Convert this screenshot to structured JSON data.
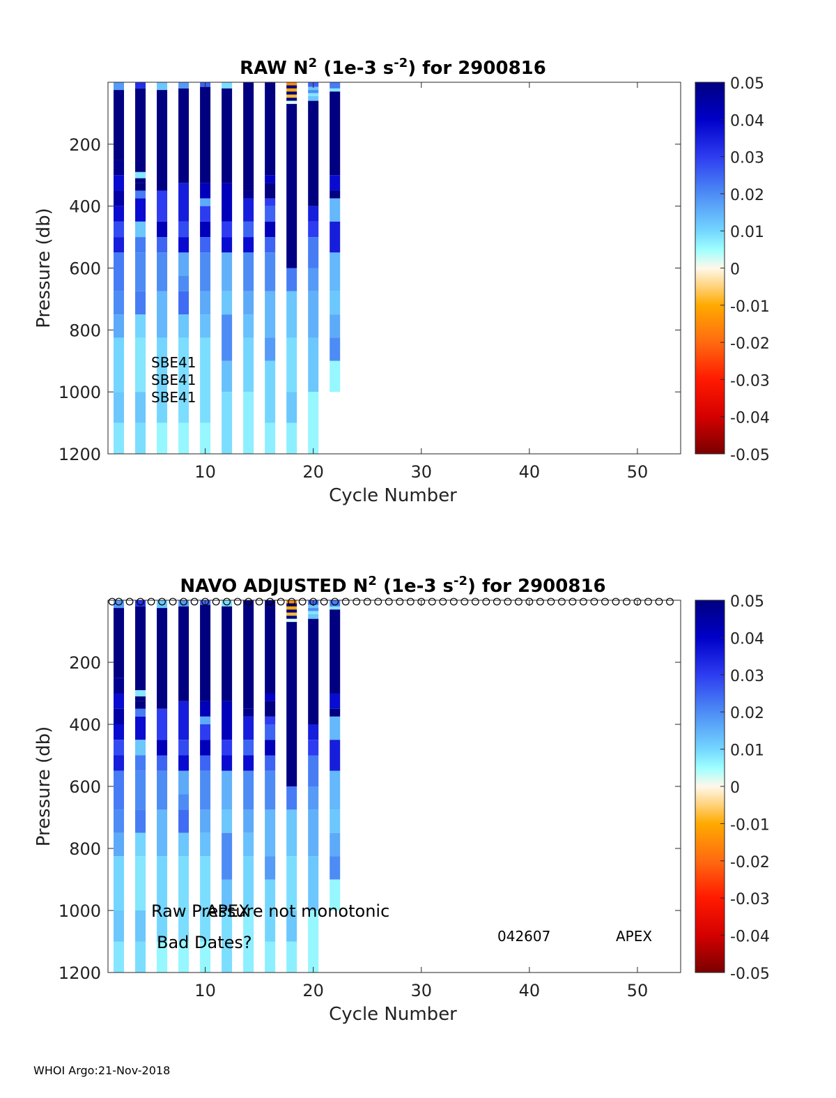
{
  "footer": "WHOI Argo:21-Nov-2018",
  "colorbar": {
    "ticks": [
      "0.05",
      "0.04",
      "0.03",
      "0.02",
      "0.01",
      "0",
      "-0.01",
      "-0.02",
      "-0.03",
      "-0.04",
      "-0.05"
    ],
    "range": [
      -0.05,
      0.05
    ]
  },
  "chart_data": [
    {
      "type": "heatmap",
      "title_main": "RAW N",
      "title_sup": "2",
      "title_mid": " (1e-3 s",
      "title_sup2": "-2",
      "title_end": ") for 2900816",
      "xlabel": "Cycle Number",
      "ylabel": "Pressure (db)",
      "xlim": [
        1,
        54
      ],
      "ylim": [
        0,
        1200
      ],
      "xticks": [
        "10",
        "20",
        "30",
        "40",
        "50"
      ],
      "yticks": [
        "200",
        "400",
        "600",
        "800",
        "1000",
        "1200"
      ],
      "cycles": [
        2,
        4,
        6,
        8,
        10,
        12,
        14,
        16,
        18,
        20,
        22
      ],
      "annotations": [
        "SBE41",
        "SBE41",
        "SBE41"
      ],
      "marker_row": false
    },
    {
      "type": "heatmap",
      "title_main": "NAVO  ADJUSTED N",
      "title_sup": "2",
      "title_mid": " (1e-3 s",
      "title_sup2": "-2",
      "title_end": ") for 2900816",
      "xlabel": "Cycle Number",
      "ylabel": "Pressure (db)",
      "xlim": [
        1,
        54
      ],
      "ylim": [
        0,
        1200
      ],
      "xticks": [
        "10",
        "20",
        "30",
        "40",
        "50"
      ],
      "yticks": [
        "200",
        "400",
        "600",
        "800",
        "1000",
        "1200"
      ],
      "cycles": [
        2,
        4,
        6,
        8,
        10,
        12,
        14,
        16,
        18,
        20,
        22
      ],
      "annotations": [
        "Raw Pressure not monotonic",
        "APEX",
        "Bad Dates?",
        "042607",
        "APEX"
      ],
      "marker_row": true
    }
  ],
  "profiles": [
    [
      [
        0,
        25,
        0.018
      ],
      [
        25,
        250,
        0.05
      ],
      [
        250,
        300,
        0.048
      ],
      [
        300,
        350,
        0.038
      ],
      [
        350,
        400,
        0.045
      ],
      [
        400,
        450,
        0.038
      ],
      [
        450,
        500,
        0.028
      ],
      [
        500,
        550,
        0.035
      ],
      [
        550,
        675,
        0.022
      ],
      [
        675,
        750,
        0.02
      ],
      [
        750,
        825,
        0.016
      ],
      [
        825,
        1000,
        0.01
      ],
      [
        1000,
        1100,
        0.012
      ],
      [
        1100,
        1200,
        0.008
      ]
    ],
    [
      [
        0,
        20,
        0.032
      ],
      [
        20,
        290,
        0.05
      ],
      [
        290,
        310,
        0.008
      ],
      [
        310,
        325,
        0.05
      ],
      [
        325,
        350,
        0.052
      ],
      [
        350,
        375,
        0.022
      ],
      [
        375,
        450,
        0.038
      ],
      [
        450,
        500,
        0.012
      ],
      [
        500,
        550,
        0.022
      ],
      [
        550,
        675,
        0.02
      ],
      [
        675,
        750,
        0.022
      ],
      [
        750,
        825,
        0.01
      ],
      [
        825,
        1000,
        0.008
      ],
      [
        1000,
        1100,
        0.012
      ],
      [
        1100,
        1200,
        0.009
      ]
    ],
    [
      [
        0,
        25,
        0.012
      ],
      [
        25,
        350,
        0.05
      ],
      [
        350,
        450,
        0.03
      ],
      [
        450,
        500,
        0.042
      ],
      [
        500,
        550,
        0.025
      ],
      [
        550,
        675,
        0.02
      ],
      [
        675,
        825,
        0.014
      ],
      [
        825,
        1100,
        0.01
      ],
      [
        1100,
        1200,
        0.006
      ]
    ],
    [
      [
        0,
        20,
        0.018
      ],
      [
        20,
        325,
        0.05
      ],
      [
        325,
        450,
        0.035
      ],
      [
        450,
        500,
        0.028
      ],
      [
        500,
        550,
        0.038
      ],
      [
        550,
        625,
        0.016
      ],
      [
        625,
        675,
        0.02
      ],
      [
        675,
        750,
        0.024
      ],
      [
        750,
        825,
        0.012
      ],
      [
        825,
        1100,
        0.009
      ],
      [
        1100,
        1200,
        0.006
      ]
    ],
    [
      [
        0,
        15,
        0.025
      ],
      [
        15,
        325,
        0.05
      ],
      [
        325,
        375,
        0.042
      ],
      [
        375,
        400,
        0.016
      ],
      [
        400,
        450,
        0.03
      ],
      [
        450,
        500,
        0.042
      ],
      [
        500,
        550,
        0.025
      ],
      [
        550,
        675,
        0.02
      ],
      [
        675,
        750,
        0.016
      ],
      [
        750,
        825,
        0.013
      ],
      [
        825,
        1100,
        0.009
      ],
      [
        1100,
        1200,
        0.006
      ]
    ],
    [
      [
        0,
        20,
        0.009
      ],
      [
        20,
        325,
        0.05
      ],
      [
        325,
        450,
        0.042
      ],
      [
        450,
        500,
        0.03
      ],
      [
        500,
        550,
        0.038
      ],
      [
        550,
        675,
        0.015
      ],
      [
        675,
        750,
        0.012
      ],
      [
        750,
        900,
        0.02
      ],
      [
        900,
        1000,
        0.013
      ],
      [
        1000,
        1200,
        0.009
      ]
    ],
    [
      [
        0,
        350,
        0.05
      ],
      [
        350,
        375,
        0.048
      ],
      [
        375,
        450,
        0.035
      ],
      [
        450,
        500,
        0.025
      ],
      [
        500,
        550,
        0.038
      ],
      [
        550,
        675,
        0.02
      ],
      [
        675,
        750,
        0.016
      ],
      [
        750,
        825,
        0.013
      ],
      [
        825,
        1000,
        0.01
      ],
      [
        1000,
        1200,
        0.007
      ]
    ],
    [
      [
        0,
        300,
        0.05
      ],
      [
        300,
        325,
        0.04
      ],
      [
        325,
        375,
        0.05
      ],
      [
        375,
        400,
        0.03
      ],
      [
        400,
        450,
        0.025
      ],
      [
        450,
        500,
        0.042
      ],
      [
        500,
        550,
        0.025
      ],
      [
        550,
        675,
        0.02
      ],
      [
        675,
        825,
        0.014
      ],
      [
        825,
        900,
        0.018
      ],
      [
        900,
        1100,
        0.01
      ],
      [
        1100,
        1200,
        0.007
      ]
    ],
    [
      [
        0,
        10,
        -0.015
      ],
      [
        10,
        20,
        0.05
      ],
      [
        20,
        30,
        -0.01
      ],
      [
        30,
        40,
        0.05
      ],
      [
        40,
        50,
        -0.008
      ],
      [
        50,
        60,
        0.05
      ],
      [
        60,
        70,
        0.002
      ],
      [
        70,
        600,
        0.05
      ],
      [
        600,
        675,
        0.022
      ],
      [
        675,
        825,
        0.012
      ],
      [
        825,
        1000,
        0.009
      ],
      [
        1000,
        1100,
        0.012
      ],
      [
        1100,
        1200,
        0.007
      ]
    ],
    [
      [
        0,
        15,
        0.025
      ],
      [
        15,
        25,
        0.012
      ],
      [
        25,
        35,
        0.02
      ],
      [
        35,
        45,
        0.008
      ],
      [
        45,
        60,
        0.012
      ],
      [
        60,
        400,
        0.05
      ],
      [
        400,
        450,
        0.035
      ],
      [
        450,
        500,
        0.03
      ],
      [
        500,
        600,
        0.022
      ],
      [
        600,
        675,
        0.018
      ],
      [
        675,
        825,
        0.015
      ],
      [
        825,
        1000,
        0.012
      ],
      [
        1000,
        1200,
        0.006
      ]
    ],
    [
      [
        0,
        20,
        0.022
      ],
      [
        20,
        30,
        0.008
      ],
      [
        30,
        300,
        0.05
      ],
      [
        300,
        350,
        0.038
      ],
      [
        350,
        375,
        0.05
      ],
      [
        375,
        450,
        0.014
      ],
      [
        450,
        550,
        0.035
      ],
      [
        550,
        675,
        0.014
      ],
      [
        675,
        750,
        0.012
      ],
      [
        750,
        825,
        0.016
      ],
      [
        825,
        900,
        0.02
      ],
      [
        900,
        1000,
        0.006
      ]
    ]
  ]
}
